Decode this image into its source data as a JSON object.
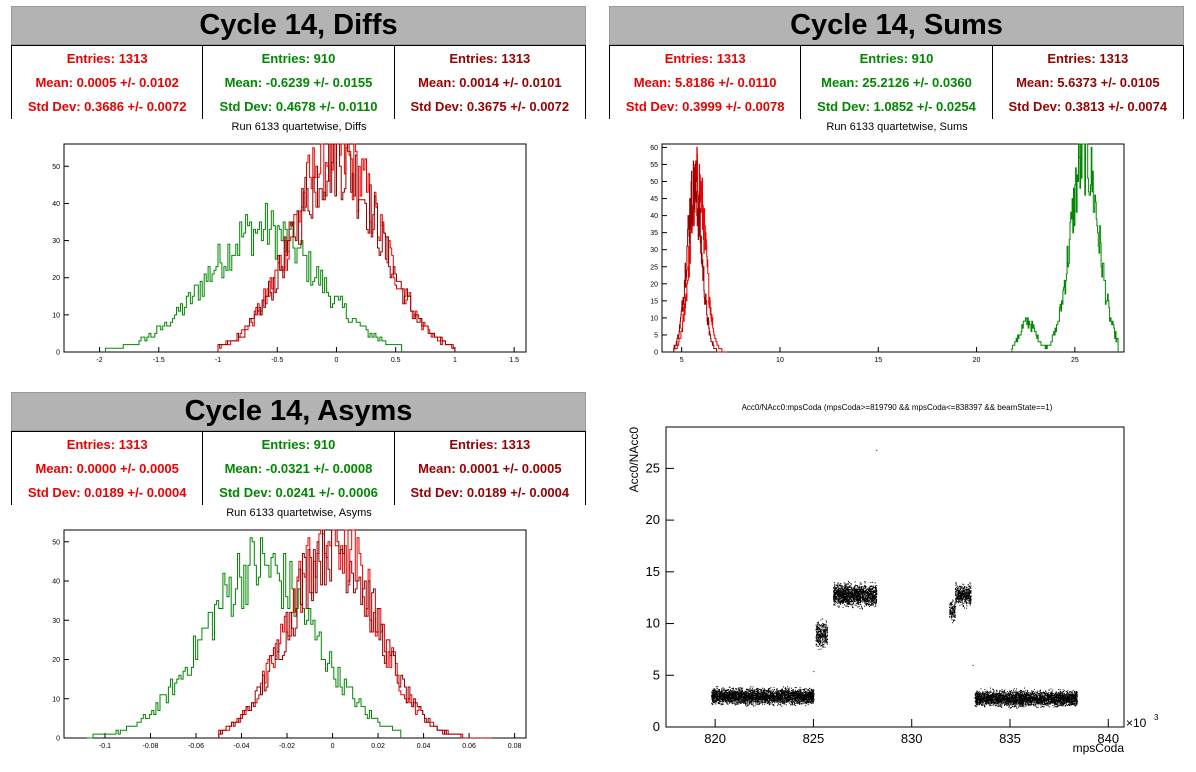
{
  "colors": {
    "red": "#ee0000",
    "green": "#008800",
    "darkred": "#990000"
  },
  "panels": [
    {
      "id": "diffs",
      "title": "Cycle 14, Diffs",
      "subtitle": "Run 6133 quartetwise, Diffs",
      "stats": [
        {
          "entries": "Entries: 1313",
          "mean": "Mean: 0.0005 +/- 0.0102",
          "std": "Std Dev: 0.3686 +/- 0.0072"
        },
        {
          "entries": "Entries: 910",
          "mean": "Mean: -0.6239 +/- 0.0155",
          "std": "Std Dev: 0.4678 +/- 0.0110"
        },
        {
          "entries": "Entries: 1313",
          "mean": "Mean: 0.0014 +/- 0.0101",
          "std": "Std Dev: 0.3675 +/- 0.0072"
        }
      ]
    },
    {
      "id": "sums",
      "title": "Cycle 14, Sums",
      "subtitle": "Run 6133 quartetwise, Sums",
      "stats": [
        {
          "entries": "Entries: 1313",
          "mean": "Mean: 5.8186 +/- 0.0110",
          "std": "Std Dev: 0.3999 +/- 0.0078"
        },
        {
          "entries": "Entries: 910",
          "mean": "Mean: 25.2126 +/- 0.0360",
          "std": "Std Dev: 1.0852 +/- 0.0254"
        },
        {
          "entries": "Entries: 1313",
          "mean": "Mean: 5.6373 +/- 0.0105",
          "std": "Std Dev: 0.3813 +/- 0.0074"
        }
      ]
    },
    {
      "id": "asyms",
      "title": "Cycle 14, Asyms",
      "subtitle": "Run 6133 quartetwise, Asyms",
      "stats": [
        {
          "entries": "Entries: 1313",
          "mean": "Mean: 0.0000 +/- 0.0005",
          "std": "Std Dev: 0.0189 +/- 0.0004"
        },
        {
          "entries": "Entries: 910",
          "mean": "Mean: -0.0321 +/- 0.0008",
          "std": "Std Dev: 0.0241 +/- 0.0006"
        },
        {
          "entries": "Entries: 1313",
          "mean": "Mean: 0.0001 +/- 0.0005",
          "std": "Std Dev: 0.0189 +/- 0.0004"
        }
      ]
    }
  ],
  "chart_data": [
    {
      "type": "histogram",
      "panel": "diffs",
      "xlim": [
        -2.3,
        1.6
      ],
      "ylim": [
        0,
        56
      ],
      "xticks": [
        "-2",
        "-1.5",
        "-1",
        "-0.5",
        "0",
        "0.5",
        "1",
        "1.5"
      ],
      "xtick_values": [
        -2,
        -1.5,
        -1,
        -0.5,
        0,
        0.5,
        1,
        1.5
      ],
      "yticks": [
        "0",
        "10",
        "20",
        "30",
        "40",
        "50"
      ],
      "ytick_values": [
        0,
        10,
        20,
        30,
        40,
        50
      ],
      "series": [
        {
          "color": "#008800",
          "mean": -0.6239,
          "sd": 0.4678,
          "peak": 33,
          "lo": -1.95,
          "hi": 0.55
        },
        {
          "color": "#ee0000",
          "mean": 0.0005,
          "sd": 0.3686,
          "peak": 54,
          "lo": -1.0,
          "hi": 1.0
        },
        {
          "color": "#990000",
          "mean": 0.0014,
          "sd": 0.3675,
          "peak": 52,
          "lo": -1.0,
          "hi": 1.0
        }
      ]
    },
    {
      "type": "histogram",
      "panel": "sums",
      "xlim": [
        4.0,
        27.5
      ],
      "ylim": [
        0,
        61
      ],
      "xticks": [
        "5",
        "10",
        "15",
        "20",
        "25"
      ],
      "xtick_values": [
        5,
        10,
        15,
        20,
        25
      ],
      "yticks": [
        "0",
        "5",
        "10",
        "15",
        "20",
        "25",
        "30",
        "35",
        "40",
        "45",
        "50",
        "55",
        "60"
      ],
      "ytick_values": [
        0,
        5,
        10,
        15,
        20,
        25,
        30,
        35,
        40,
        45,
        50,
        55,
        60
      ],
      "series": [
        {
          "color": "#008800",
          "mean": 25.5,
          "sd": 0.7,
          "peak": 58,
          "lo": 21.8,
          "hi": 27.2,
          "second": {
            "mean": 22.6,
            "sd": 0.4,
            "peak": 9
          }
        },
        {
          "color": "#ee0000",
          "mean": 5.82,
          "sd": 0.4,
          "peak": 50,
          "lo": 4.6,
          "hi": 7.3
        },
        {
          "color": "#990000",
          "mean": 5.64,
          "sd": 0.38,
          "peak": 48,
          "lo": 4.6,
          "hi": 7.3
        }
      ]
    },
    {
      "type": "histogram",
      "panel": "asyms",
      "xlim": [
        -0.118,
        0.085
      ],
      "ylim": [
        0,
        53
      ],
      "xticks": [
        "-0.1",
        "-0.08",
        "-0.06",
        "-0.04",
        "-0.02",
        "0",
        "0.02",
        "0.04",
        "0.06",
        "0.08"
      ],
      "xtick_values": [
        -0.1,
        -0.08,
        -0.06,
        -0.04,
        -0.02,
        0,
        0.02,
        0.04,
        0.06,
        0.08
      ],
      "yticks": [
        "0",
        "10",
        "20",
        "30",
        "40",
        "50"
      ],
      "ytick_values": [
        0,
        10,
        20,
        30,
        40,
        50
      ],
      "series": [
        {
          "color": "#008800",
          "mean": -0.0321,
          "sd": 0.0241,
          "peak": 44,
          "lo": -0.108,
          "hi": 0.03
        },
        {
          "color": "#ee0000",
          "mean": 0.0,
          "sd": 0.0189,
          "peak": 51,
          "lo": -0.05,
          "hi": 0.07
        },
        {
          "color": "#990000",
          "mean": 0.0001,
          "sd": 0.0189,
          "peak": 50,
          "lo": -0.05,
          "hi": 0.07
        }
      ]
    },
    {
      "type": "scatter",
      "title": "Acc0/NAcc0:mpsCoda (mpsCoda>=819790 && mpsCoda<=838397 && beamState==1)",
      "xlabel": "mpsCoda",
      "ylabel": "Acc0/NAcc0",
      "x_multiplier": "×10",
      "x_multiplier_exp": "3",
      "xlim": [
        817.5,
        840.8
      ],
      "ylim": [
        0,
        29
      ],
      "xticks": [
        "820",
        "825",
        "830",
        "835",
        "840"
      ],
      "xtick_values": [
        820,
        825,
        830,
        835,
        840
      ],
      "yticks": [
        "0",
        "5",
        "10",
        "15",
        "20",
        "25"
      ],
      "ytick_values": [
        0,
        5,
        10,
        15,
        20,
        25
      ],
      "clusters": [
        {
          "x0": 819.8,
          "x1": 825.0,
          "yc": 3.0,
          "dy": 0.7,
          "n": 3200
        },
        {
          "x0": 825.1,
          "x1": 825.7,
          "yc": 9.0,
          "dy": 1.2,
          "n": 320
        },
        {
          "x0": 826.0,
          "x1": 828.2,
          "yc": 12.8,
          "dy": 1.0,
          "n": 1500
        },
        {
          "x0": 831.9,
          "x1": 832.2,
          "yc": 11.3,
          "dy": 0.9,
          "n": 120
        },
        {
          "x0": 832.2,
          "x1": 833.0,
          "yc": 12.8,
          "dy": 0.9,
          "n": 420
        },
        {
          "x0": 833.2,
          "x1": 838.4,
          "yc": 2.8,
          "dy": 0.7,
          "n": 3000
        }
      ],
      "outliers": [
        [
          828.2,
          26.8
        ],
        [
          825.0,
          5.4
        ],
        [
          833.1,
          6.0
        ]
      ]
    }
  ]
}
